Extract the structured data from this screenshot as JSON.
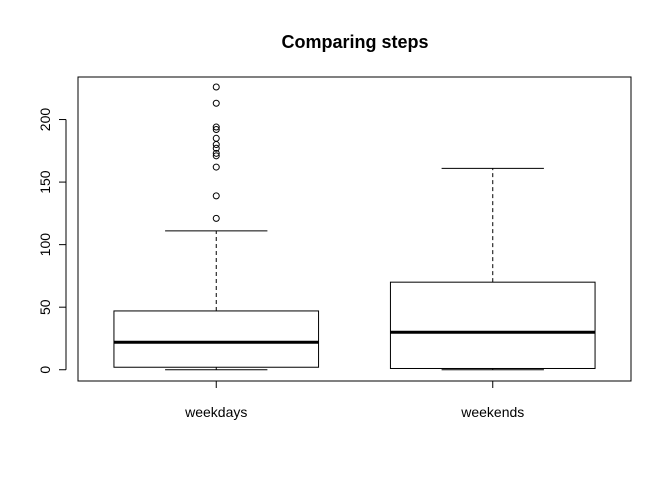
{
  "chart_data": {
    "type": "boxplot",
    "title": "Comparing steps",
    "xlabel": "",
    "ylabel": "",
    "categories": [
      "weekdays",
      "weekends"
    ],
    "ylim": [
      -9,
      234
    ],
    "yticks": [
      0,
      50,
      100,
      150,
      200
    ],
    "ytick_labels": [
      "0",
      "50",
      "100",
      "150",
      "200"
    ],
    "grid": false,
    "boxes": [
      {
        "name": "weekdays",
        "whisker_low": 0,
        "q1": 2,
        "median": 22,
        "q3": 47,
        "whisker_high": 111,
        "outliers": [
          121,
          139,
          162,
          171,
          173,
          177,
          180,
          185,
          192,
          194,
          213,
          226
        ]
      },
      {
        "name": "weekends",
        "whisker_low": 0,
        "q1": 1,
        "median": 30,
        "q3": 70,
        "whisker_high": 161,
        "outliers": []
      }
    ]
  }
}
